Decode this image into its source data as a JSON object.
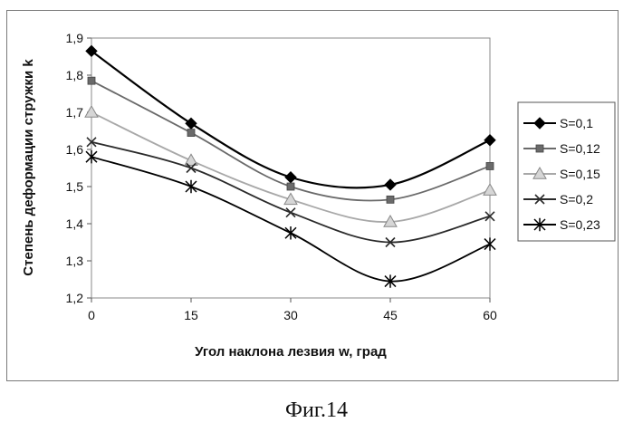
{
  "chart_data": {
    "type": "line",
    "title": "",
    "xlabel": "Угол наклона лезвия w, град",
    "ylabel": "Степень деформации стружки k",
    "x": [
      0,
      15,
      30,
      45,
      60
    ],
    "x_tick_labels": [
      "0",
      "15",
      "30",
      "45",
      "60"
    ],
    "ylim": [
      1.2,
      1.9
    ],
    "y_ticks": [
      1.2,
      1.3,
      1.4,
      1.5,
      1.6,
      1.7,
      1.8,
      1.9
    ],
    "y_tick_labels": [
      "1,2",
      "1,3",
      "1,4",
      "1,5",
      "1,6",
      "1,7",
      "1,8",
      "1,9"
    ],
    "grid": false,
    "smooth": true,
    "legend_position": "right",
    "series": [
      {
        "name": "S=0,1",
        "values": [
          1.865,
          1.67,
          1.525,
          1.505,
          1.625
        ],
        "marker": "diamond",
        "color": "#000000"
      },
      {
        "name": "S=0,12",
        "values": [
          1.785,
          1.645,
          1.5,
          1.465,
          1.555
        ],
        "marker": "square",
        "color": "#6a6a6a"
      },
      {
        "name": "S=0,15",
        "values": [
          1.7,
          1.57,
          1.465,
          1.405,
          1.49
        ],
        "marker": "triangle",
        "color": "#a8a8a8"
      },
      {
        "name": "S=0,2",
        "values": [
          1.62,
          1.55,
          1.43,
          1.35,
          1.42
        ],
        "marker": "x",
        "color": "#2a2a2a"
      },
      {
        "name": "S=0,23",
        "values": [
          1.58,
          1.5,
          1.375,
          1.245,
          1.345
        ],
        "marker": "star",
        "color": "#000000"
      }
    ]
  },
  "caption": "Фиг.14"
}
